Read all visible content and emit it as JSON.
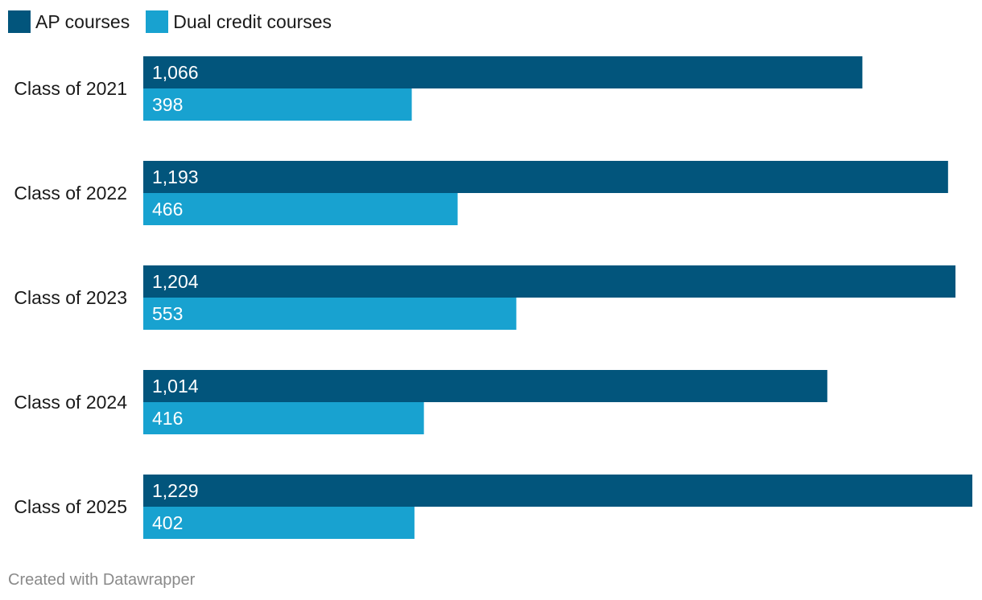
{
  "legend": {
    "items": [
      {
        "label": "AP courses",
        "color": "#02557c"
      },
      {
        "label": "Dual credit courses",
        "color": "#18a2d0"
      }
    ]
  },
  "chart_data": {
    "type": "bar",
    "orientation": "horizontal",
    "categories": [
      "Class of 2021",
      "Class of 2022",
      "Class of 2023",
      "Class of 2024",
      "Class of 2025"
    ],
    "series": [
      {
        "name": "AP courses",
        "color": "#02557c",
        "values": [
          1066,
          1193,
          1204,
          1014,
          1229
        ],
        "labels": [
          "1,066",
          "1,193",
          "1,204",
          "1,014",
          "1,229"
        ]
      },
      {
        "name": "Dual credit courses",
        "color": "#18a2d0",
        "values": [
          398,
          466,
          553,
          416,
          402
        ],
        "labels": [
          "398",
          "466",
          "553",
          "416",
          "402"
        ]
      }
    ],
    "title": "",
    "xlabel": "",
    "ylabel": "",
    "xlim": [
      0,
      1229
    ],
    "grid": false,
    "legend_position": "top-left"
  },
  "footer": {
    "credit": "Created with Datawrapper"
  }
}
